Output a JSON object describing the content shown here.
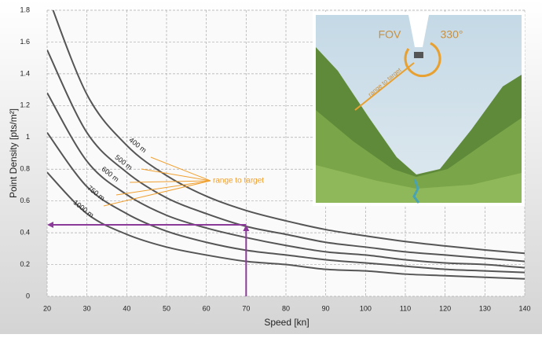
{
  "chart_data": {
    "type": "line",
    "x_label": "Speed [kn]",
    "y_label": "Point Density [pts/m²]",
    "x": [
      20,
      30,
      40,
      50,
      60,
      70,
      80,
      90,
      100,
      110,
      120,
      130,
      140
    ],
    "series": [
      {
        "name": "400 m",
        "color": "#555555",
        "values": [
          1.9,
          1.27,
          0.95,
          0.76,
          0.63,
          0.54,
          0.475,
          0.42,
          0.38,
          0.345,
          0.317,
          0.292,
          0.271
        ]
      },
      {
        "name": "500 m",
        "color": "#555555",
        "values": [
          1.55,
          1.03,
          0.78,
          0.62,
          0.52,
          0.44,
          0.39,
          0.34,
          0.31,
          0.28,
          0.26,
          0.24,
          0.22
        ]
      },
      {
        "name": "600 m",
        "color": "#555555",
        "values": [
          1.28,
          0.85,
          0.64,
          0.51,
          0.43,
          0.37,
          0.32,
          0.28,
          0.26,
          0.23,
          0.21,
          0.2,
          0.18
        ]
      },
      {
        "name": "750 m",
        "color": "#555555",
        "values": [
          1.03,
          0.69,
          0.52,
          0.41,
          0.34,
          0.29,
          0.26,
          0.23,
          0.21,
          0.19,
          0.17,
          0.16,
          0.15
        ]
      },
      {
        "name": "1000 m",
        "color": "#555555",
        "values": [
          0.78,
          0.52,
          0.39,
          0.31,
          0.26,
          0.22,
          0.2,
          0.17,
          0.16,
          0.14,
          0.13,
          0.12,
          0.11
        ]
      }
    ],
    "xlim": [
      20,
      140
    ],
    "xticks": [
      20,
      30,
      40,
      50,
      60,
      70,
      80,
      90,
      100,
      110,
      120,
      130,
      140
    ],
    "ylim": [
      0,
      1.8
    ],
    "yticks": [
      0,
      0.2,
      0.4,
      0.6,
      0.8,
      1,
      1.2,
      1.4,
      1.6,
      1.8
    ],
    "grid": true,
    "annotation": "range to target",
    "example": {
      "speed": 70,
      "density": 0.45,
      "color": "#8b3a9a"
    },
    "inset": {
      "fov_label": "FOV",
      "angle_label": "330°",
      "range_label": "range to target"
    }
  }
}
